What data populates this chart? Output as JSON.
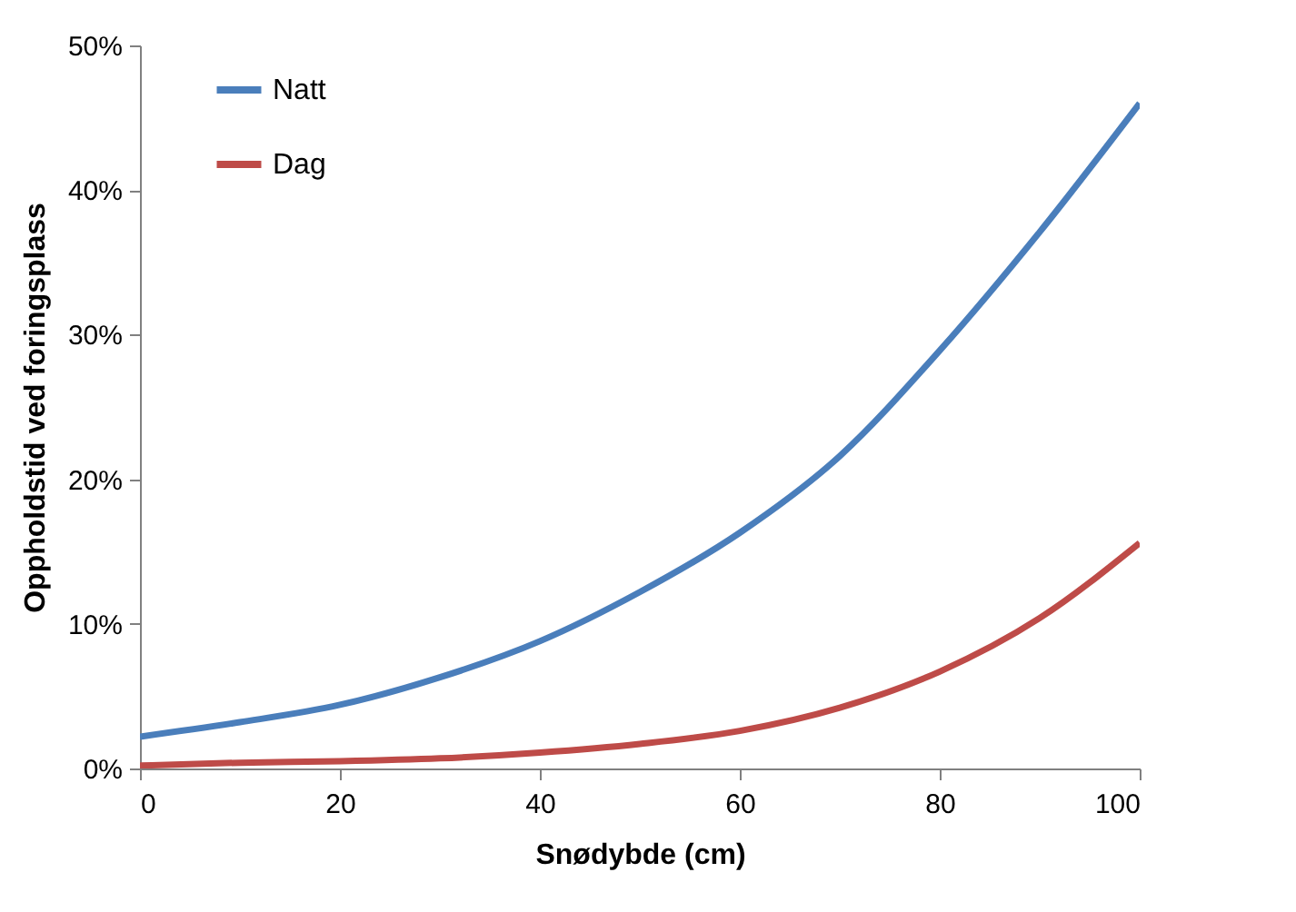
{
  "chart_data": {
    "type": "line",
    "xlabel": "Snødybde (cm)",
    "ylabel": "Oppholdstid ved foringsplass",
    "x": [
      0,
      10,
      20,
      30,
      40,
      50,
      60,
      70,
      80,
      90,
      100
    ],
    "series": [
      {
        "name": "Natt",
        "color": "#4a7ebb",
        "values": [
          2.2,
          3.2,
          4.4,
          6.3,
          8.8,
          12.2,
          16.3,
          21.6,
          28.9,
          37.1,
          46.0
        ]
      },
      {
        "name": "Dag",
        "color": "#be4b48",
        "values": [
          0.2,
          0.4,
          0.5,
          0.7,
          1.1,
          1.7,
          2.6,
          4.2,
          6.7,
          10.4,
          15.6
        ]
      }
    ],
    "xlim": [
      0,
      100
    ],
    "xticks": [
      0,
      20,
      40,
      60,
      80,
      100
    ],
    "ylim": [
      0,
      50
    ],
    "yticks": [
      {
        "value": 0,
        "label": "0%"
      },
      {
        "value": 10,
        "label": "10%"
      },
      {
        "value": 20,
        "label": "20%"
      },
      {
        "value": 30,
        "label": "30%"
      },
      {
        "value": 40,
        "label": "40%"
      },
      {
        "value": 50,
        "label": "50%"
      }
    ],
    "grid": false,
    "legend": "top left",
    "marker": "none",
    "line_style": "solid"
  }
}
